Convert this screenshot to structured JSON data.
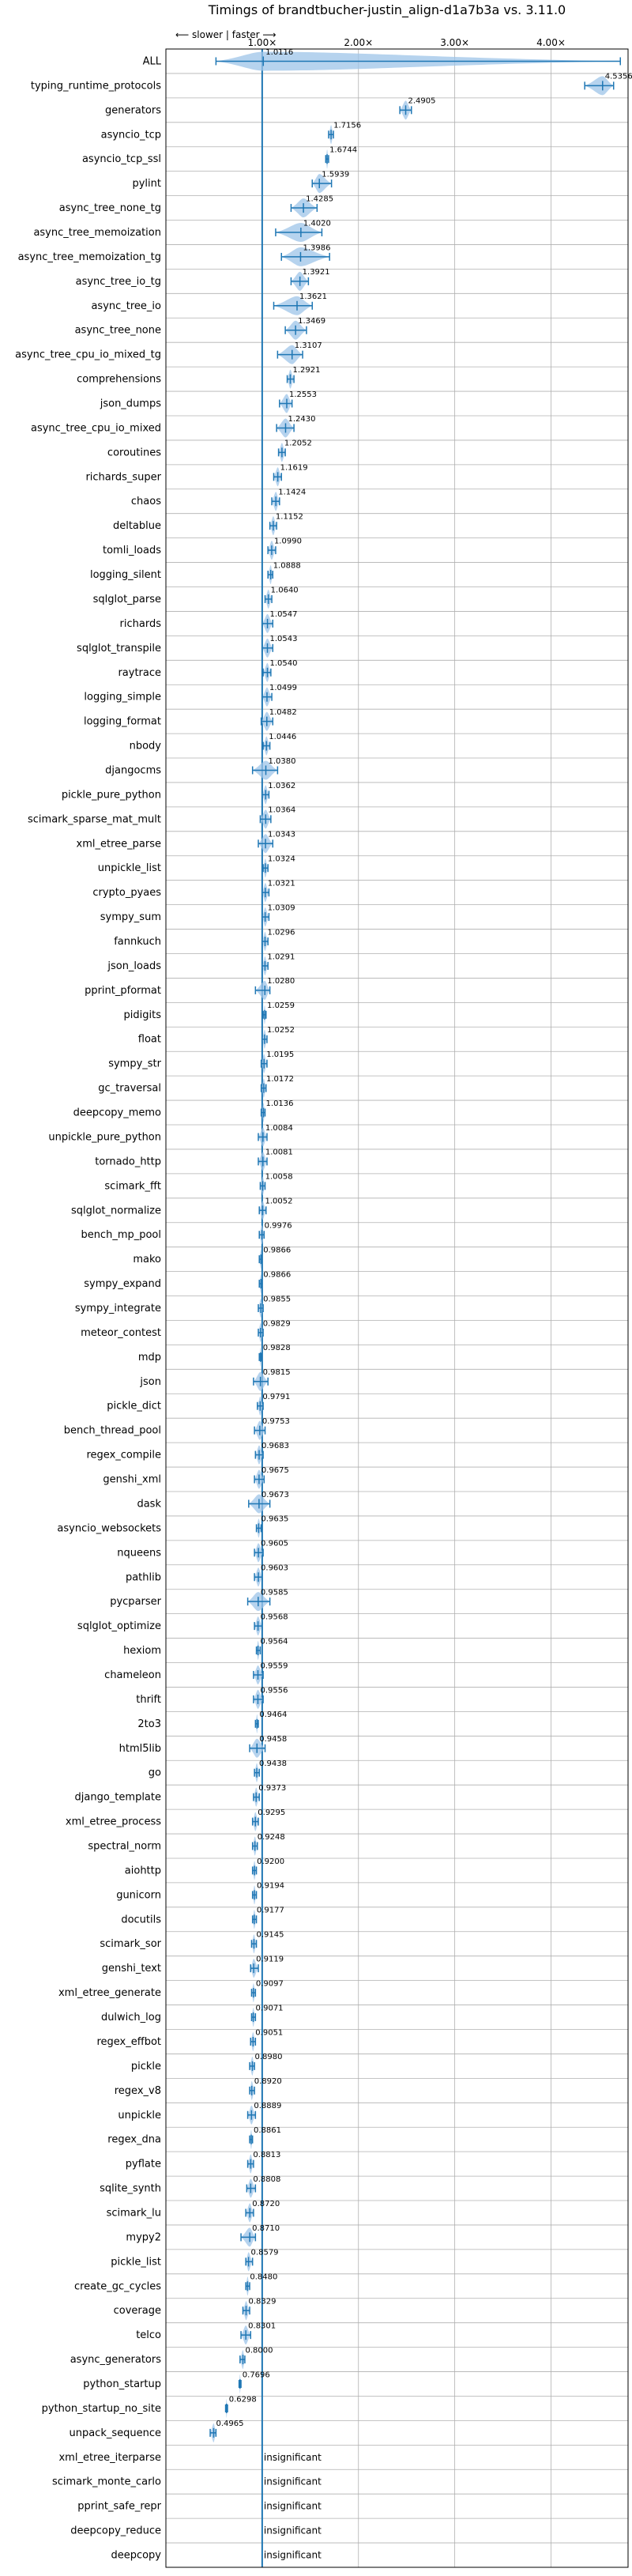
{
  "chart_data": {
    "type": "violin",
    "title": "Timings of brandtbucher-justin_align-d1a7b3a vs. 3.11.0",
    "direction_label": "⟵ slower  |  faster ⟶",
    "x_ticks": [
      1.0,
      2.0,
      3.0,
      4.0
    ],
    "x_tick_labels": [
      "1.00×",
      "2.00×",
      "3.00×",
      "4.00×"
    ],
    "xlim": [
      0.0,
      4.8
    ],
    "reference_line": 1.0,
    "grid": true,
    "colors": {
      "violin": "#9ec4e8",
      "line": "#1f77b4",
      "reference": "#1f77b4",
      "grid": "#b0b0b0"
    },
    "categories": [
      "ALL",
      "typing_runtime_protocols",
      "generators",
      "asyncio_tcp",
      "asyncio_tcp_ssl",
      "pylint",
      "async_tree_none_tg",
      "async_tree_memoization",
      "async_tree_memoization_tg",
      "async_tree_io_tg",
      "async_tree_io",
      "async_tree_none",
      "async_tree_cpu_io_mixed_tg",
      "comprehensions",
      "json_dumps",
      "async_tree_cpu_io_mixed",
      "coroutines",
      "richards_super",
      "chaos",
      "deltablue",
      "tomli_loads",
      "logging_silent",
      "sqlglot_parse",
      "richards",
      "sqlglot_transpile",
      "raytrace",
      "logging_simple",
      "logging_format",
      "nbody",
      "djangocms",
      "pickle_pure_python",
      "scimark_sparse_mat_mult",
      "xml_etree_parse",
      "unpickle_list",
      "crypto_pyaes",
      "sympy_sum",
      "fannkuch",
      "json_loads",
      "pprint_pformat",
      "pidigits",
      "float",
      "sympy_str",
      "gc_traversal",
      "deepcopy_memo",
      "unpickle_pure_python",
      "tornado_http",
      "scimark_fft",
      "sqlglot_normalize",
      "bench_mp_pool",
      "mako",
      "sympy_expand",
      "sympy_integrate",
      "meteor_contest",
      "mdp",
      "json",
      "pickle_dict",
      "bench_thread_pool",
      "regex_compile",
      "genshi_xml",
      "dask",
      "asyncio_websockets",
      "nqueens",
      "pathlib",
      "pycparser",
      "sqlglot_optimize",
      "hexiom",
      "chameleon",
      "thrift",
      "2to3",
      "html5lib",
      "go",
      "django_template",
      "xml_etree_process",
      "spectral_norm",
      "aiohttp",
      "gunicorn",
      "docutils",
      "scimark_sor",
      "genshi_text",
      "xml_etree_generate",
      "dulwich_log",
      "regex_effbot",
      "pickle",
      "regex_v8",
      "unpickle",
      "regex_dna",
      "pyflate",
      "sqlite_synth",
      "scimark_lu",
      "mypy2",
      "pickle_list",
      "create_gc_cycles",
      "coverage",
      "telco",
      "async_generators",
      "python_startup",
      "python_startup_no_site",
      "unpack_sequence",
      "xml_etree_iterparse",
      "scimark_monte_carlo",
      "pprint_safe_repr",
      "deepcopy_reduce",
      "deepcopy"
    ],
    "values": [
      1.0116,
      4.5356,
      2.4905,
      1.7156,
      1.6744,
      1.5939,
      1.4285,
      1.402,
      1.3986,
      1.3921,
      1.3621,
      1.3469,
      1.3107,
      1.2921,
      1.2553,
      1.243,
      1.2052,
      1.1619,
      1.1424,
      1.1152,
      1.099,
      1.0888,
      1.064,
      1.0547,
      1.0543,
      1.054,
      1.0499,
      1.0482,
      1.0446,
      1.038,
      1.0362,
      1.0364,
      1.0343,
      1.0324,
      1.0321,
      1.0309,
      1.0296,
      1.0291,
      1.028,
      1.0259,
      1.0252,
      1.0195,
      1.0172,
      1.0136,
      1.0084,
      1.0081,
      1.0058,
      1.0052,
      0.9976,
      0.9866,
      0.9866,
      0.9855,
      0.9829,
      0.9828,
      0.9815,
      0.9791,
      0.9753,
      0.9683,
      0.9675,
      0.9673,
      0.9635,
      0.9605,
      0.9603,
      0.9585,
      0.9568,
      0.9564,
      0.9559,
      0.9556,
      0.9464,
      0.9458,
      0.9438,
      0.9373,
      0.9295,
      0.9248,
      0.92,
      0.9194,
      0.9177,
      0.9145,
      0.9119,
      0.9097,
      0.9071,
      0.9051,
      0.898,
      0.892,
      0.8889,
      0.8861,
      0.8813,
      0.8808,
      0.872,
      0.871,
      0.8579,
      0.848,
      0.8329,
      0.8301,
      0.8,
      0.7696,
      0.6298,
      0.4965,
      null,
      null,
      null,
      null,
      null
    ],
    "value_labels": [
      "1.0116",
      "4.5356",
      "2.4905",
      "1.7156",
      "1.6744",
      "1.5939",
      "1.4285",
      "1.4020",
      "1.3986",
      "1.3921",
      "1.3621",
      "1.3469",
      "1.3107",
      "1.2921",
      "1.2553",
      "1.2430",
      "1.2052",
      "1.1619",
      "1.1424",
      "1.1152",
      "1.0990",
      "1.0888",
      "1.0640",
      "1.0547",
      "1.0543",
      "1.0540",
      "1.0499",
      "1.0482",
      "1.0446",
      "1.0380",
      "1.0362",
      "1.0364",
      "1.0343",
      "1.0324",
      "1.0321",
      "1.0309",
      "1.0296",
      "1.0291",
      "1.0280",
      "1.0259",
      "1.0252",
      "1.0195",
      "1.0172",
      "1.0136",
      "1.0084",
      "1.0081",
      "1.0058",
      "1.0052",
      "0.9976",
      "0.9866",
      "0.9866",
      "0.9855",
      "0.9829",
      "0.9828",
      "0.9815",
      "0.9791",
      "0.9753",
      "0.9683",
      "0.9675",
      "0.9673",
      "0.9635",
      "0.9605",
      "0.9603",
      "0.9585",
      "0.9568",
      "0.9564",
      "0.9559",
      "0.9556",
      "0.9464",
      "0.9458",
      "0.9438",
      "0.9373",
      "0.9295",
      "0.9248",
      "0.9200",
      "0.9194",
      "0.9177",
      "0.9145",
      "0.9119",
      "0.9097",
      "0.9071",
      "0.9051",
      "0.8980",
      "0.8920",
      "0.8889",
      "0.8861",
      "0.8813",
      "0.8808",
      "0.8720",
      "0.8710",
      "0.8579",
      "0.8480",
      "0.8329",
      "0.8301",
      "0.8000",
      "0.7696",
      "0.6298",
      "0.4965",
      "insignificant",
      "insignificant",
      "insignificant",
      "insignificant",
      "insignificant"
    ],
    "ranges": [
      [
        0.52,
        4.72
      ],
      [
        4.35,
        4.65
      ],
      [
        2.43,
        2.55
      ],
      [
        1.69,
        1.74
      ],
      [
        1.66,
        1.69
      ],
      [
        1.52,
        1.72
      ],
      [
        1.3,
        1.57
      ],
      [
        1.14,
        1.62
      ],
      [
        1.2,
        1.7
      ],
      [
        1.3,
        1.48
      ],
      [
        1.12,
        1.52
      ],
      [
        1.24,
        1.46
      ],
      [
        1.16,
        1.42
      ],
      [
        1.26,
        1.33
      ],
      [
        1.18,
        1.31
      ],
      [
        1.15,
        1.33
      ],
      [
        1.17,
        1.24
      ],
      [
        1.12,
        1.2
      ],
      [
        1.1,
        1.18
      ],
      [
        1.08,
        1.15
      ],
      [
        1.06,
        1.14
      ],
      [
        1.06,
        1.11
      ],
      [
        1.03,
        1.1
      ],
      [
        1.0,
        1.11
      ],
      [
        1.0,
        1.11
      ],
      [
        1.01,
        1.09
      ],
      [
        1.0,
        1.1
      ],
      [
        0.99,
        1.11
      ],
      [
        1.01,
        1.08
      ],
      [
        0.9,
        1.16
      ],
      [
        1.0,
        1.07
      ],
      [
        0.98,
        1.09
      ],
      [
        0.96,
        1.11
      ],
      [
        1.01,
        1.06
      ],
      [
        1.0,
        1.07
      ],
      [
        1.0,
        1.07
      ],
      [
        1.0,
        1.06
      ],
      [
        1.0,
        1.06
      ],
      [
        0.93,
        1.08
      ],
      [
        1.01,
        1.04
      ],
      [
        1.0,
        1.05
      ],
      [
        0.99,
        1.05
      ],
      [
        0.99,
        1.04
      ],
      [
        0.99,
        1.03
      ],
      [
        0.96,
        1.05
      ],
      [
        0.96,
        1.05
      ],
      [
        0.98,
        1.03
      ],
      [
        0.97,
        1.04
      ],
      [
        0.97,
        1.02
      ],
      [
        0.97,
        1.0
      ],
      [
        0.97,
        1.0
      ],
      [
        0.96,
        1.01
      ],
      [
        0.96,
        1.01
      ],
      [
        0.97,
        0.99
      ],
      [
        0.91,
        1.06
      ],
      [
        0.95,
        1.01
      ],
      [
        0.92,
        1.03
      ],
      [
        0.93,
        1.01
      ],
      [
        0.92,
        1.02
      ],
      [
        0.86,
        1.08
      ],
      [
        0.94,
        0.99
      ],
      [
        0.92,
        1.01
      ],
      [
        0.92,
        1.0
      ],
      [
        0.85,
        1.08
      ],
      [
        0.92,
        1.0
      ],
      [
        0.94,
        0.98
      ],
      [
        0.91,
        1.01
      ],
      [
        0.91,
        1.01
      ],
      [
        0.93,
        0.96
      ],
      [
        0.87,
        1.03
      ],
      [
        0.92,
        0.97
      ],
      [
        0.91,
        0.97
      ],
      [
        0.9,
        0.96
      ],
      [
        0.9,
        0.95
      ],
      [
        0.9,
        0.94
      ],
      [
        0.9,
        0.94
      ],
      [
        0.9,
        0.94
      ],
      [
        0.89,
        0.94
      ],
      [
        0.88,
        0.96
      ],
      [
        0.89,
        0.93
      ],
      [
        0.89,
        0.93
      ],
      [
        0.88,
        0.93
      ],
      [
        0.87,
        0.92
      ],
      [
        0.87,
        0.92
      ],
      [
        0.85,
        0.93
      ],
      [
        0.87,
        0.9
      ],
      [
        0.85,
        0.91
      ],
      [
        0.84,
        0.93
      ],
      [
        0.83,
        0.91
      ],
      [
        0.78,
        0.93
      ],
      [
        0.83,
        0.9
      ],
      [
        0.83,
        0.87
      ],
      [
        0.8,
        0.87
      ],
      [
        0.78,
        0.88
      ],
      [
        0.77,
        0.82
      ],
      [
        0.76,
        0.78
      ],
      [
        0.62,
        0.64
      ],
      [
        0.46,
        0.52
      ],
      null,
      null,
      null,
      null,
      null
    ]
  }
}
